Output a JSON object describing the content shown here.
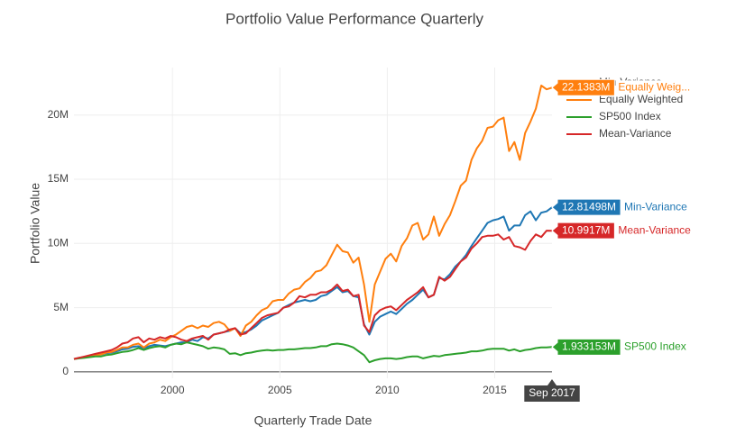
{
  "chart_data": {
    "type": "line",
    "title": "Portfolio Value Performance Quarterly",
    "x_label": "Quarterly Trade Date",
    "y_label": "Portfolio Value",
    "x_hover_label": "Sep 2017",
    "x": [
      "1995-06",
      "1995-09",
      "1995-12",
      "1996-03",
      "1996-06",
      "1996-09",
      "1996-12",
      "1997-03",
      "1997-06",
      "1997-09",
      "1997-12",
      "1998-03",
      "1998-06",
      "1998-09",
      "1998-12",
      "1999-03",
      "1999-06",
      "1999-09",
      "1999-12",
      "2000-03",
      "2000-06",
      "2000-09",
      "2000-12",
      "2001-03",
      "2001-06",
      "2001-09",
      "2001-12",
      "2002-03",
      "2002-06",
      "2002-09",
      "2002-12",
      "2003-03",
      "2003-06",
      "2003-09",
      "2003-12",
      "2004-03",
      "2004-06",
      "2004-09",
      "2004-12",
      "2005-03",
      "2005-06",
      "2005-09",
      "2005-12",
      "2006-03",
      "2006-06",
      "2006-09",
      "2006-12",
      "2007-03",
      "2007-06",
      "2007-09",
      "2007-12",
      "2008-03",
      "2008-06",
      "2008-09",
      "2008-12",
      "2009-03",
      "2009-06",
      "2009-09",
      "2009-12",
      "2010-03",
      "2010-06",
      "2010-09",
      "2010-12",
      "2011-03",
      "2011-06",
      "2011-09",
      "2011-12",
      "2012-03",
      "2012-06",
      "2012-09",
      "2012-12",
      "2013-03",
      "2013-06",
      "2013-09",
      "2013-12",
      "2014-03",
      "2014-06",
      "2014-09",
      "2014-12",
      "2015-03",
      "2015-06",
      "2015-09",
      "2015-12",
      "2016-03",
      "2016-06",
      "2016-09",
      "2016-12",
      "2017-03",
      "2017-06",
      "2017-09"
    ],
    "xlim": [
      "1995-06",
      "2017-09"
    ],
    "xticks": [
      {
        "value": "2000-01",
        "label": "2000"
      },
      {
        "value": "2005-01",
        "label": "2005"
      },
      {
        "value": "2010-01",
        "label": "2010"
      },
      {
        "value": "2015-01",
        "label": "2015"
      }
    ],
    "ylim": [
      -500000,
      23700000
    ],
    "yticks": [
      0,
      {
        "value": 5000000,
        "label": "5M"
      },
      {
        "value": 10000000,
        "label": "10M"
      },
      {
        "value": 15000000,
        "label": "15M"
      },
      {
        "value": 20000000,
        "label": "20M"
      }
    ],
    "grid": true,
    "legend": "top-right",
    "series": [
      {
        "name": "Min-Variance",
        "color": "#1f77b4",
        "end_label": "12.81498M",
        "values": [
          1000000,
          1100000,
          1150000,
          1200000,
          1300000,
          1350000,
          1450000,
          1500000,
          1600000,
          1750000,
          1800000,
          1950000,
          2000000,
          1850000,
          2000000,
          2100000,
          2050000,
          2000000,
          2100000,
          2200000,
          2300000,
          2300000,
          2500000,
          2400000,
          2700000,
          2600000,
          2900000,
          3000000,
          3100000,
          3200000,
          3400000,
          3000000,
          3100000,
          3300000,
          3600000,
          4000000,
          4200000,
          4400000,
          4600000,
          5000000,
          5200000,
          5400000,
          5500000,
          5600000,
          5500000,
          5600000,
          5900000,
          6000000,
          6300000,
          6600000,
          6200000,
          6300000,
          5900000,
          5800000,
          3700000,
          2900000,
          3900000,
          4300000,
          4500000,
          4700000,
          4500000,
          4900000,
          5300000,
          5600000,
          6000000,
          6400000,
          5800000,
          6000000,
          7300000,
          7200000,
          7600000,
          8200000,
          8600000,
          9100000,
          9800000,
          10400000,
          11000000,
          11600000,
          11800000,
          11900000,
          12100000,
          11000000,
          11400000,
          11400000,
          12200000,
          12500000,
          11800000,
          12400000,
          12500000,
          12814980
        ]
      },
      {
        "name": "Equally Weighted",
        "color": "#ff7f0e",
        "end_label": "22.1383M",
        "end_name": "Equally Weig...",
        "values": [
          1000000,
          1100000,
          1150000,
          1200000,
          1300000,
          1350000,
          1500000,
          1550000,
          1700000,
          1900000,
          1900000,
          2100000,
          2200000,
          1900000,
          2200000,
          2300000,
          2500000,
          2400000,
          2700000,
          2900000,
          3200000,
          3500000,
          3600000,
          3400000,
          3600000,
          3500000,
          3800000,
          3900000,
          3700000,
          3200000,
          3400000,
          2800000,
          3600000,
          3900000,
          4400000,
          4800000,
          5000000,
          5500000,
          5600000,
          5600000,
          6100000,
          6400000,
          6500000,
          7000000,
          7300000,
          7800000,
          7900000,
          8300000,
          9100000,
          9900000,
          9400000,
          9300000,
          8500000,
          8900000,
          6800000,
          3900000,
          6800000,
          7800000,
          8800000,
          9200000,
          8600000,
          9800000,
          10400000,
          11400000,
          11600000,
          10300000,
          10700000,
          12100000,
          10600000,
          11500000,
          12200000,
          13300000,
          14500000,
          14900000,
          16500000,
          17400000,
          18000000,
          19000000,
          19100000,
          19600000,
          19800000,
          17200000,
          17900000,
          16500000,
          18600000,
          19500000,
          20500000,
          22300000,
          22000000,
          22138300
        ]
      },
      {
        "name": "SP500 Index",
        "color": "#2ca02c",
        "end_label": "1.933153M",
        "values": [
          1000000,
          1050000,
          1100000,
          1150000,
          1200000,
          1200000,
          1300000,
          1350000,
          1450000,
          1550000,
          1600000,
          1700000,
          1850000,
          1700000,
          1850000,
          1950000,
          2000000,
          1900000,
          2100000,
          2200000,
          2150000,
          2300000,
          2200000,
          2100000,
          2000000,
          1800000,
          1900000,
          1850000,
          1750000,
          1400000,
          1450000,
          1300000,
          1450000,
          1500000,
          1600000,
          1650000,
          1700000,
          1650000,
          1700000,
          1700000,
          1750000,
          1750000,
          1800000,
          1850000,
          1850000,
          1900000,
          2000000,
          2000000,
          2150000,
          2200000,
          2150000,
          2050000,
          1900000,
          1600000,
          1300000,
          750000,
          900000,
          1000000,
          1050000,
          1050000,
          1000000,
          1050000,
          1150000,
          1200000,
          1200000,
          1050000,
          1150000,
          1250000,
          1200000,
          1300000,
          1350000,
          1400000,
          1450000,
          1500000,
          1600000,
          1600000,
          1650000,
          1750000,
          1800000,
          1800000,
          1800000,
          1650000,
          1750000,
          1600000,
          1700000,
          1750000,
          1850000,
          1900000,
          1900000,
          1933153
        ]
      },
      {
        "name": "Mean-Variance",
        "color": "#d62728",
        "end_label": "10.9917M",
        "values": [
          1000000,
          1100000,
          1200000,
          1300000,
          1400000,
          1500000,
          1600000,
          1700000,
          1900000,
          2200000,
          2300000,
          2600000,
          2700000,
          2300000,
          2600000,
          2500000,
          2700000,
          2600000,
          2800000,
          2700000,
          2500000,
          2400000,
          2600000,
          2700000,
          2800000,
          2500000,
          2900000,
          3000000,
          3100000,
          3300000,
          3400000,
          2900000,
          3000000,
          3400000,
          3800000,
          4200000,
          4400000,
          4500000,
          4600000,
          5000000,
          5100000,
          5400000,
          5900000,
          5800000,
          6000000,
          6000000,
          6200000,
          6200000,
          6400000,
          6800000,
          6300000,
          6400000,
          5900000,
          6000000,
          3600000,
          3100000,
          4400000,
          4800000,
          5000000,
          5100000,
          4800000,
          5200000,
          5600000,
          5900000,
          6200000,
          6600000,
          5800000,
          6000000,
          7400000,
          7100000,
          7400000,
          8000000,
          8600000,
          8900000,
          9600000,
          10000000,
          10500000,
          10600000,
          10600000,
          10700000,
          10300000,
          10500000,
          9800000,
          9700000,
          9500000,
          10200000,
          10700000,
          10500000,
          11000000,
          10991700
        ]
      }
    ]
  }
}
